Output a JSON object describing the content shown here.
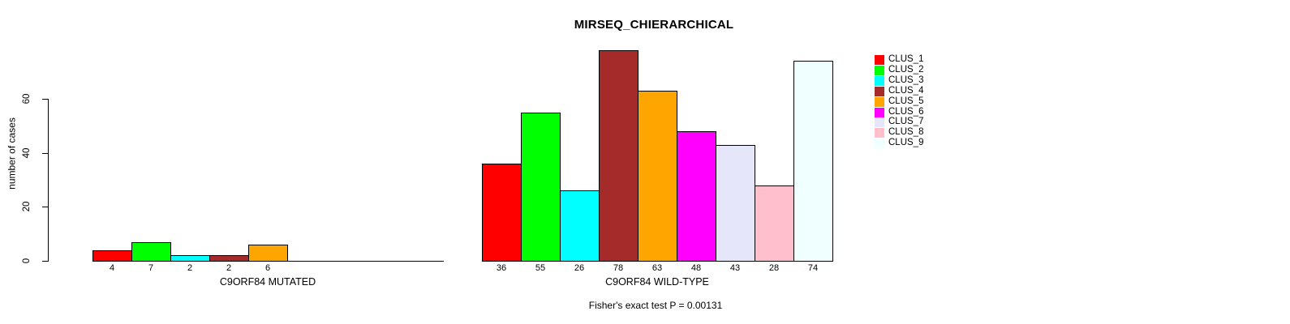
{
  "title": "MIRSEQ_CHIERARCHICAL",
  "footnote": "Fisher's exact test P = 0.00131",
  "y_axis": {
    "label": "number of cases",
    "ticks": [
      0,
      20,
      40,
      60
    ],
    "range": [
      0,
      60
    ]
  },
  "palette": {
    "CLUS_1": "#FF0000",
    "CLUS_2": "#00FF00",
    "CLUS_3": "#00FFFF",
    "CLUS_4": "#A52A2A",
    "CLUS_5": "#FFA500",
    "CLUS_6": "#FF00FF",
    "CLUS_7": "#E6E6FA",
    "CLUS_8": "#FFC0CB",
    "CLUS_9": "#F0FFFF"
  },
  "legend": {
    "position": "top-right",
    "entries": [
      "CLUS_1",
      "CLUS_2",
      "CLUS_3",
      "CLUS_4",
      "CLUS_5",
      "CLUS_6",
      "CLUS_7",
      "CLUS_8",
      "CLUS_9"
    ]
  },
  "chart_data": [
    {
      "type": "bar",
      "xlabel": "C9ORF84 MUTATED",
      "categories": [
        "CLUS_1",
        "CLUS_2",
        "CLUS_3",
        "CLUS_4",
        "CLUS_5"
      ],
      "values": [
        4,
        7,
        2,
        2,
        6
      ],
      "bar_labels": [
        "4",
        "7",
        "2",
        "2",
        "6"
      ],
      "n_slots": 9,
      "ylim": [
        0,
        60
      ],
      "grid": false
    },
    {
      "type": "bar",
      "xlabel": "C9ORF84 WILD-TYPE",
      "categories": [
        "CLUS_1",
        "CLUS_2",
        "CLUS_3",
        "CLUS_4",
        "CLUS_5",
        "CLUS_6",
        "CLUS_7",
        "CLUS_8",
        "CLUS_9"
      ],
      "values": [
        36,
        55,
        26,
        78,
        63,
        48,
        43,
        28,
        74
      ],
      "bar_labels": [
        "36",
        "55",
        "26",
        "78",
        "63",
        "48",
        "43",
        "28",
        "74"
      ],
      "n_slots": 9,
      "ylim": [
        0,
        60
      ],
      "grid": false
    }
  ]
}
